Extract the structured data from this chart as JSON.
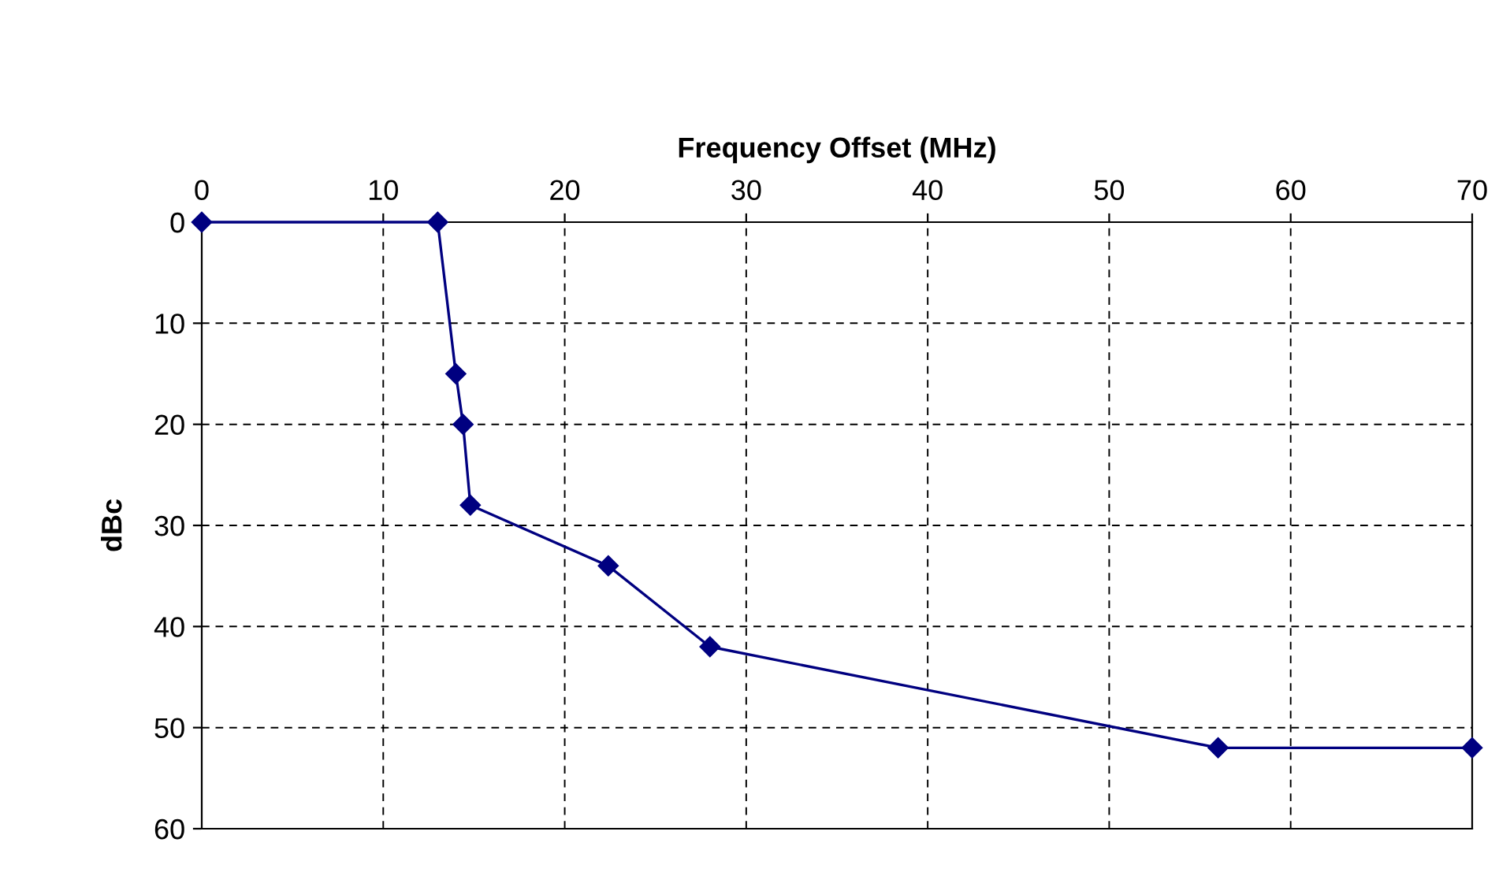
{
  "chart_data": {
    "type": "line",
    "xlabel": "Frequency Offset (MHz)",
    "ylabel": "dBc",
    "x": [
      0,
      13,
      14,
      14.4,
      14.8,
      22.4,
      28,
      56,
      70
    ],
    "series": [
      {
        "color": "#000080",
        "values": [
          0,
          0,
          15,
          20,
          28,
          34,
          42,
          52,
          52
        ]
      }
    ],
    "xlim": [
      0,
      70
    ],
    "xticks": [
      0,
      10,
      20,
      30,
      40,
      50,
      60,
      70
    ],
    "ylim": [
      60,
      0
    ],
    "yticks": [
      0,
      10,
      20,
      30,
      40,
      50,
      60
    ],
    "grid": true,
    "marker": "diamond",
    "line_style": "solid"
  }
}
